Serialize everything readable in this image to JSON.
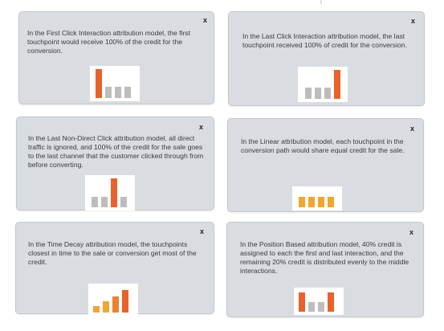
{
  "colors": {
    "highlight": "#e8622a",
    "neutral": "#bdbdbd",
    "linear": "#f3a531",
    "time_decay_light": "#f3a531",
    "time_decay_mid": "#ee8030",
    "time_decay_dark": "#e8622a"
  },
  "close_label": "x",
  "cards": [
    {
      "id": "first-click",
      "text": "In the First Click Interaction attribution model, the first touchpoint would receive 100% of the credit for the conversion.",
      "chart_data": {
        "type": "bar",
        "values": [
          100,
          0,
          0,
          0
        ],
        "highlight_index": 0
      }
    },
    {
      "id": "last-click",
      "text": "In the Last Click Interaction attribution model, the last touchpoint received 100% of credit for the conversion.",
      "chart_data": {
        "type": "bar",
        "values": [
          0,
          0,
          0,
          100
        ],
        "highlight_index": 3
      }
    },
    {
      "id": "last-non-direct-click",
      "text": "In the Last Non-Direct Click attribution model, all direct traffic is ignored, and 100% of the credit for the sale goes to the last channel that the customer clicked through from before converting.",
      "chart_data": {
        "type": "bar",
        "values": [
          0,
          0,
          100,
          0
        ],
        "highlight_index": 2
      }
    },
    {
      "id": "linear",
      "text": "In the Linear attribution model, each touchpoint in the conversion path would share equal credit for the sale.",
      "chart_data": {
        "type": "bar",
        "values": [
          25,
          25,
          25,
          25
        ]
      }
    },
    {
      "id": "time-decay",
      "text": "In the Time Decay attribution model, the touchpoints closest in time to the sale or conversion get most of the credit.",
      "chart_data": {
        "type": "bar",
        "values": [
          10,
          20,
          30,
          40
        ]
      }
    },
    {
      "id": "position-based",
      "text": "In the Position Based attribution model, 40% credit is assigned to each the first and last interaction, and the remaining 20% credit is distributed evenly to the middle interactions.",
      "chart_data": {
        "type": "bar",
        "values": [
          40,
          10,
          10,
          40
        ],
        "highlight_index": [
          0,
          3
        ]
      }
    }
  ]
}
